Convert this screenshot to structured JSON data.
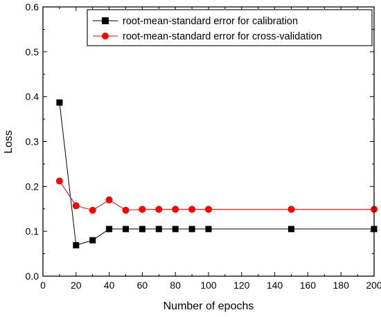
{
  "chart_data": {
    "type": "line",
    "title": "",
    "xlabel": "Number of epochs",
    "ylabel": "Loss",
    "xlim": [
      0,
      200
    ],
    "ylim": [
      0.0,
      0.6
    ],
    "x_ticks": [
      0,
      20,
      40,
      60,
      80,
      100,
      120,
      140,
      160,
      180,
      200
    ],
    "x_tick_labels": [
      "0",
      "20",
      "40",
      "60",
      "80",
      "100",
      "120",
      "140",
      "160",
      "180",
      "200"
    ],
    "y_ticks": [
      0.0,
      0.1,
      0.2,
      0.3,
      0.4,
      0.5,
      0.6
    ],
    "y_tick_labels": [
      "0.0",
      "0.1",
      "0.2",
      "0.3",
      "0.4",
      "0.5",
      "0.6"
    ],
    "grid": false,
    "legend_position": "top-right",
    "x": [
      10,
      20,
      30,
      40,
      50,
      60,
      70,
      80,
      90,
      100,
      150,
      200
    ],
    "series": [
      {
        "name": "root-mean-standard error for calibration",
        "color": "#000000",
        "marker": "square",
        "values": [
          0.387,
          0.069,
          0.08,
          0.105,
          0.105,
          0.105,
          0.105,
          0.105,
          0.105,
          0.105,
          0.105,
          0.105
        ]
      },
      {
        "name": "root-mean-standard error for cross-validation",
        "color": "#ff0000",
        "marker": "circle",
        "values": [
          0.212,
          0.157,
          0.147,
          0.17,
          0.147,
          0.149,
          0.149,
          0.149,
          0.149,
          0.149,
          0.149,
          0.149
        ]
      }
    ]
  }
}
